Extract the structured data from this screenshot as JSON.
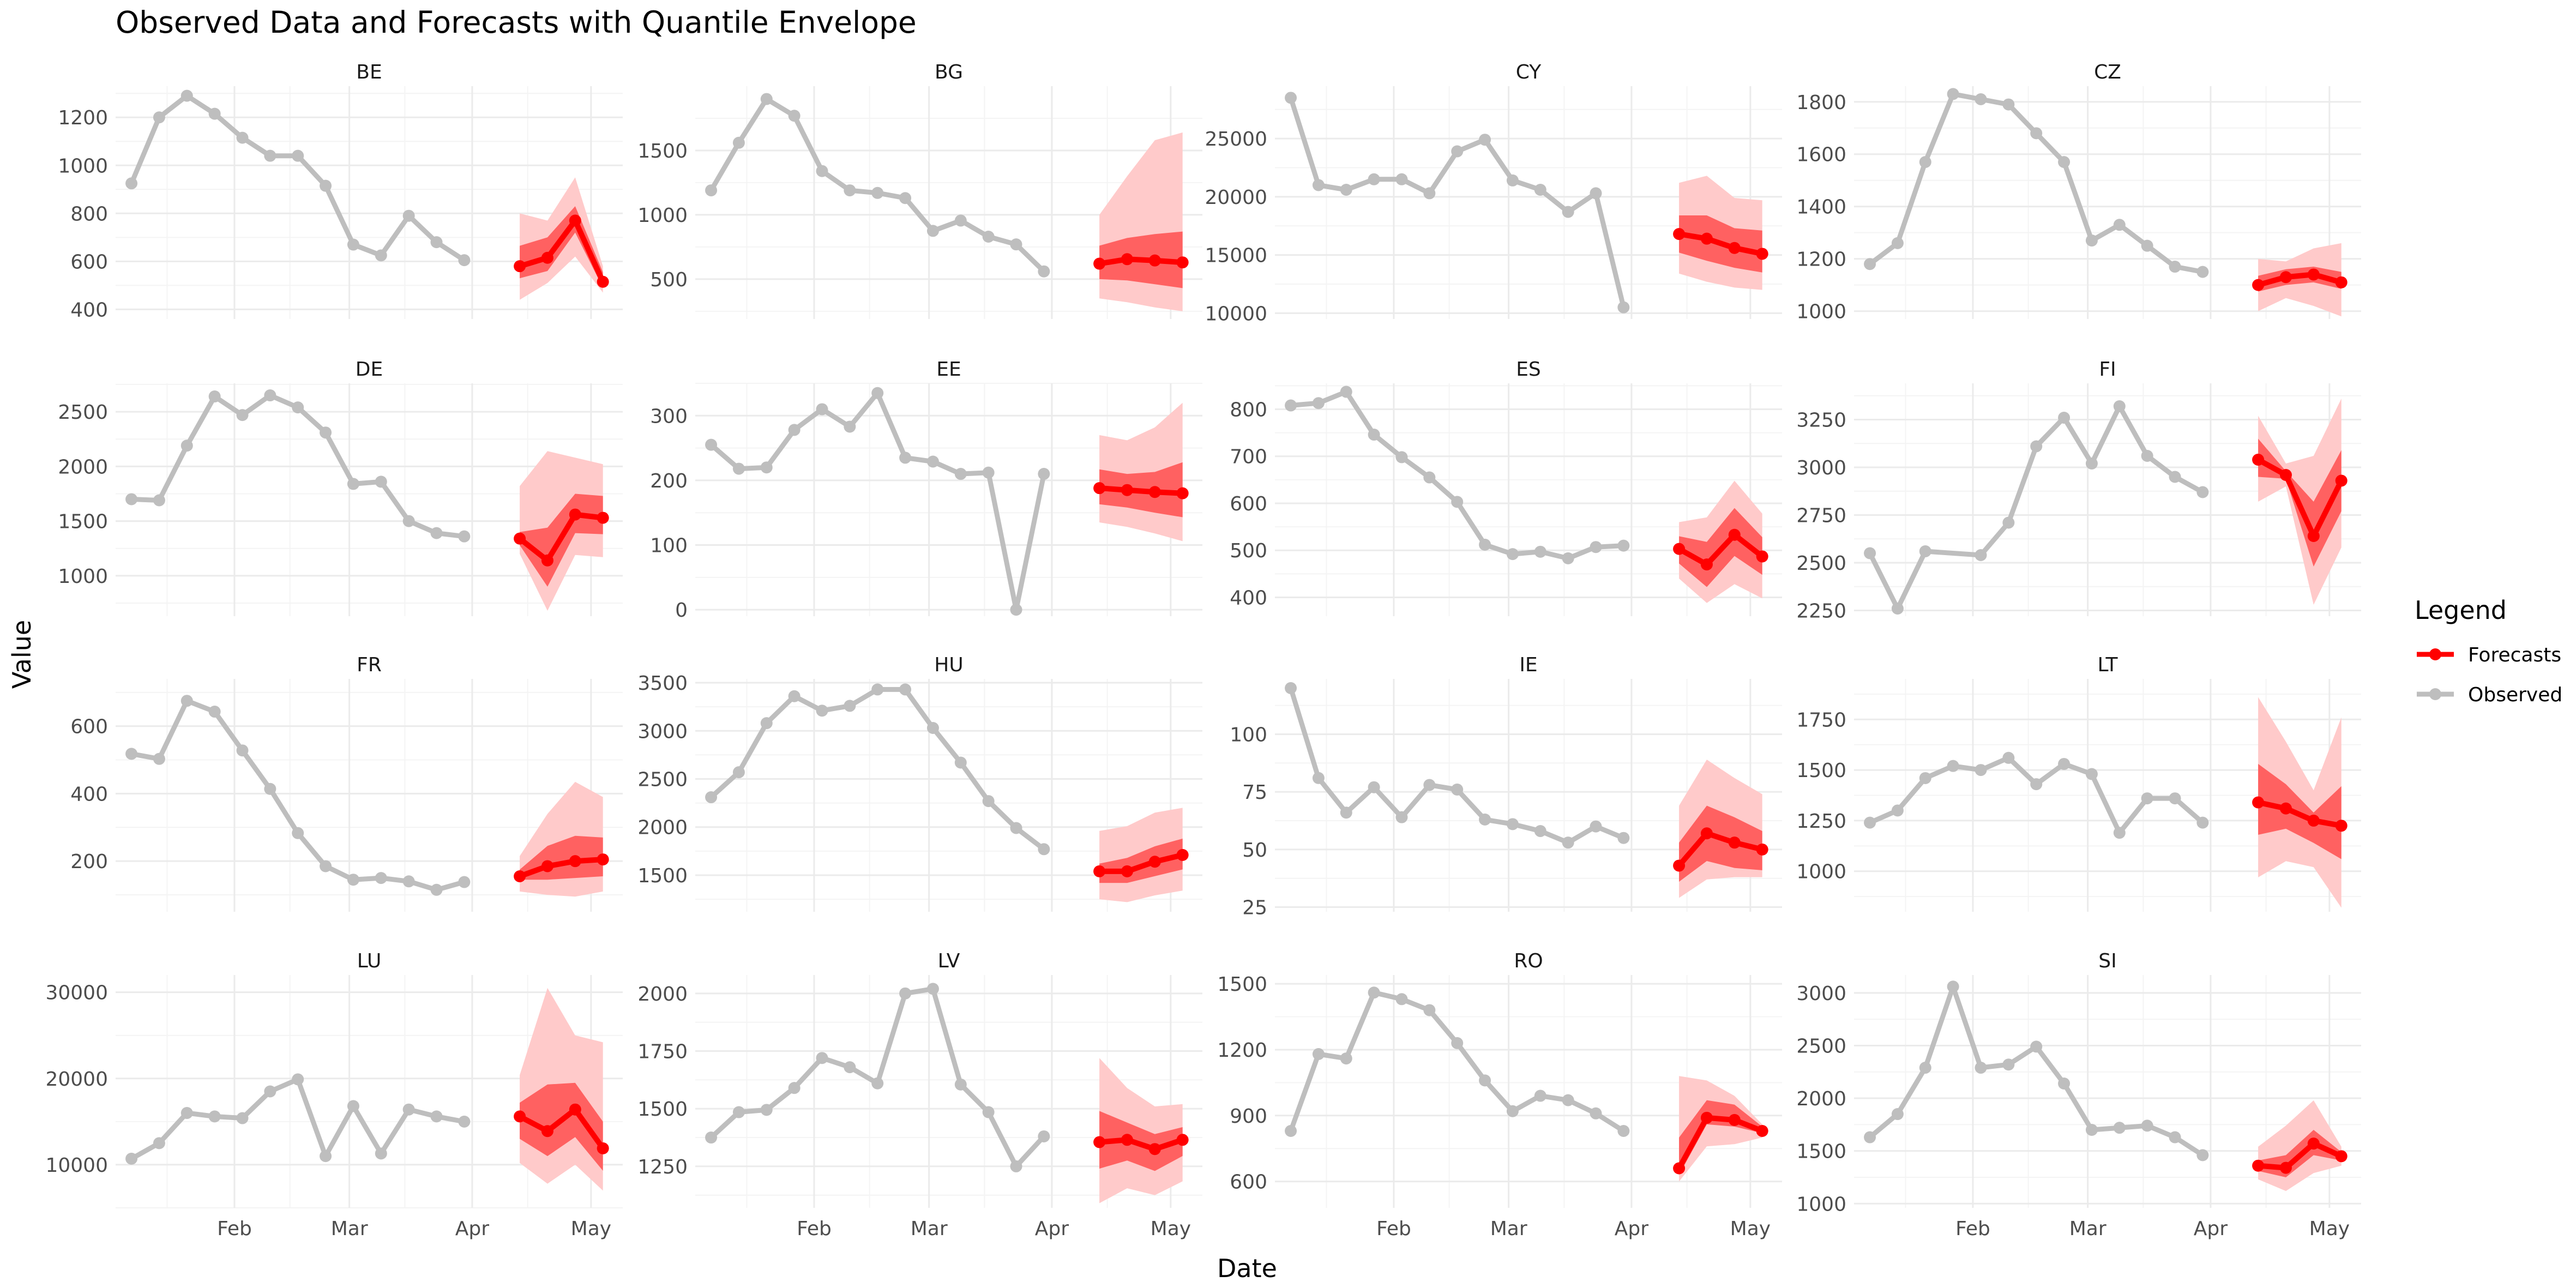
{
  "chart_data": {
    "type": "line",
    "title": "Observed Data and Forecasts with Quantile Envelope",
    "xlabel": "Date",
    "ylabel": "Value",
    "x_tick_labels": [
      "Feb",
      "Mar",
      "Apr",
      "May"
    ],
    "x_tick_dates": [
      "2024-02-01",
      "2024-03-01",
      "2024-04-01",
      "2024-05-01"
    ],
    "grid": true,
    "legend": {
      "title": "Legend",
      "position": "right",
      "entries": [
        {
          "name": "Forecasts",
          "color": "#ff0000"
        },
        {
          "name": "Observed",
          "color": "#bebebe"
        }
      ]
    },
    "colors": {
      "observed": "#bebebe",
      "forecast": "#ff0000",
      "inner_band": "#ff6161",
      "outer_band": "#ffcaca",
      "grid_major": "#ebebeb",
      "grid_minor": "#f4f4f4",
      "strip_text": "#1a1a1a",
      "axis_text": "#4d4d4d"
    },
    "observed_dates": [
      "2024-01-06",
      "2024-01-13",
      "2024-01-20",
      "2024-01-27",
      "2024-02-03",
      "2024-02-10",
      "2024-02-17",
      "2024-02-24",
      "2024-03-02",
      "2024-03-09",
      "2024-03-16",
      "2024-03-23",
      "2024-03-30",
      "2024-04-06"
    ],
    "forecast_dates": [
      "2024-04-13",
      "2024-04-20",
      "2024-04-27",
      "2024-05-04"
    ],
    "x_range": [
      "2024-01-02",
      "2024-05-09"
    ],
    "panels": [
      {
        "name": "BE",
        "ylim": [
          360,
          1330
        ],
        "yticks": [
          400,
          600,
          800,
          1000,
          1200
        ],
        "observed": [
          925,
          1200,
          1290,
          1215,
          1115,
          1040,
          1040,
          915,
          670,
          625,
          790,
          680,
          605,
          null
        ],
        "forecast": {
          "median": [
            580,
            615,
            770,
            515
          ],
          "inner_low": [
            530,
            560,
            720,
            490
          ],
          "inner_high": [
            665,
            700,
            830,
            555
          ],
          "outer_low": [
            440,
            510,
            620,
            470
          ],
          "outer_high": [
            800,
            770,
            950,
            580
          ]
        }
      },
      {
        "name": "BG",
        "ylim": [
          190,
          2000
        ],
        "yticks": [
          500,
          1000,
          1500
        ],
        "observed": [
          1190,
          1560,
          1900,
          1770,
          1340,
          1190,
          1170,
          1130,
          875,
          955,
          830,
          770,
          560,
          null
        ],
        "forecast": {
          "median": [
            620,
            655,
            645,
            630
          ],
          "inner_low": [
            500,
            490,
            460,
            430
          ],
          "inner_high": [
            760,
            820,
            850,
            870
          ],
          "outer_low": [
            350,
            320,
            280,
            250
          ],
          "outer_high": [
            1000,
            1300,
            1580,
            1640
          ]
        }
      },
      {
        "name": "CY",
        "ylim": [
          9500,
          29500
        ],
        "yticks": [
          10000,
          15000,
          20000,
          25000
        ],
        "observed": [
          28500,
          21000,
          20600,
          21500,
          21500,
          20300,
          23900,
          24900,
          21400,
          20600,
          18700,
          20300,
          10500,
          null
        ],
        "forecast": {
          "median": [
            16800,
            16400,
            15600,
            15100
          ],
          "inner_low": [
            15200,
            14500,
            13900,
            13500
          ],
          "inner_high": [
            18400,
            18400,
            17300,
            17100
          ],
          "outer_low": [
            13400,
            12700,
            12200,
            12000
          ],
          "outer_high": [
            21200,
            21800,
            19900,
            19700
          ]
        }
      },
      {
        "name": "CZ",
        "ylim": [
          970,
          1860
        ],
        "yticks": [
          1000,
          1200,
          1400,
          1600,
          1800
        ],
        "observed": [
          1180,
          1260,
          1570,
          1830,
          1810,
          1790,
          1680,
          1570,
          1270,
          1330,
          1250,
          1170,
          1150,
          null
        ],
        "forecast": {
          "median": [
            1100,
            1130,
            1140,
            1110
          ],
          "inner_low": [
            1075,
            1100,
            1110,
            1085
          ],
          "inner_high": [
            1135,
            1160,
            1170,
            1150
          ],
          "outer_low": [
            1000,
            1050,
            1020,
            980
          ],
          "outer_high": [
            1200,
            1190,
            1240,
            1260
          ]
        }
      },
      {
        "name": "DE",
        "ylim": [
          630,
          2760
        ],
        "yticks": [
          1000,
          1500,
          2000,
          2500
        ],
        "observed": [
          1700,
          1690,
          2190,
          2640,
          2470,
          2650,
          2540,
          2310,
          1840,
          1860,
          1500,
          1390,
          1360,
          null
        ],
        "forecast": {
          "median": [
            1340,
            1140,
            1560,
            1530
          ],
          "inner_low": [
            1280,
            900,
            1390,
            1380
          ],
          "inner_high": [
            1400,
            1440,
            1750,
            1730
          ],
          "outer_low": [
            1200,
            680,
            1190,
            1170
          ],
          "outer_high": [
            1820,
            2140,
            2080,
            2020
          ]
        }
      },
      {
        "name": "EE",
        "ylim": [
          -10,
          350
        ],
        "yticks": [
          0,
          100,
          200,
          300
        ],
        "observed": [
          255,
          218,
          220,
          278,
          310,
          283,
          335,
          235,
          229,
          210,
          212,
          0,
          210,
          null
        ],
        "forecast": {
          "median": [
            188,
            185,
            182,
            180
          ],
          "inner_low": [
            163,
            158,
            150,
            143
          ],
          "inner_high": [
            217,
            210,
            213,
            228
          ],
          "outer_low": [
            135,
            128,
            118,
            106
          ],
          "outer_high": [
            270,
            262,
            282,
            320
          ]
        }
      },
      {
        "name": "ES",
        "ylim": [
          360,
          855
        ],
        "yticks": [
          400,
          500,
          600,
          700,
          800
        ],
        "observed": [
          808,
          813,
          837,
          746,
          698,
          655,
          603,
          512,
          492,
          497,
          483,
          507,
          510,
          null
        ],
        "forecast": {
          "median": [
            503,
            470,
            533,
            487
          ],
          "inner_low": [
            472,
            422,
            488,
            448
          ],
          "inner_high": [
            530,
            518,
            590,
            528
          ],
          "outer_low": [
            440,
            388,
            428,
            398
          ],
          "outer_high": [
            560,
            570,
            648,
            578
          ]
        }
      },
      {
        "name": "FI",
        "ylim": [
          2220,
          3440
        ],
        "yticks": [
          2250,
          2500,
          2750,
          3000,
          3250
        ],
        "observed": [
          2550,
          2260,
          2560,
          null,
          2540,
          2710,
          3110,
          3260,
          3020,
          3320,
          3060,
          2950,
          2870,
          null
        ],
        "forecast": {
          "median": [
            3040,
            2960,
            2640,
            2930
          ],
          "inner_low": [
            2950,
            2940,
            2480,
            2770
          ],
          "inner_high": [
            3150,
            2980,
            2820,
            3090
          ],
          "outer_low": [
            2820,
            2900,
            2280,
            2580
          ],
          "outer_high": [
            3270,
            3020,
            3060,
            3360
          ]
        }
      },
      {
        "name": "FR",
        "ylim": [
          50,
          740
        ],
        "yticks": [
          200,
          400,
          600
        ],
        "observed": [
          518,
          503,
          675,
          643,
          528,
          414,
          283,
          185,
          145,
          150,
          140,
          115,
          138,
          null
        ],
        "forecast": {
          "median": [
            155,
            185,
            200,
            205
          ],
          "inner_low": [
            145,
            145,
            150,
            155
          ],
          "inner_high": [
            175,
            245,
            275,
            270
          ],
          "outer_low": [
            110,
            100,
            95,
            110
          ],
          "outer_high": [
            215,
            340,
            435,
            390
          ]
        }
      },
      {
        "name": "HU",
        "ylim": [
          1120,
          3540
        ],
        "yticks": [
          1500,
          2000,
          2500,
          3000,
          3500
        ],
        "observed": [
          2310,
          2570,
          3080,
          3360,
          3210,
          3260,
          3430,
          3430,
          3030,
          2670,
          2270,
          1990,
          1770,
          null
        ],
        "forecast": {
          "median": [
            1540,
            1540,
            1640,
            1710
          ],
          "inner_low": [
            1420,
            1420,
            1490,
            1560
          ],
          "inner_high": [
            1620,
            1680,
            1800,
            1880
          ],
          "outer_low": [
            1250,
            1220,
            1290,
            1340
          ],
          "outer_high": [
            1960,
            2010,
            2150,
            2200
          ]
        }
      },
      {
        "name": "IE",
        "ylim": [
          23,
          124
        ],
        "yticks": [
          25,
          50,
          75,
          100
        ],
        "observed": [
          120,
          81,
          66,
          77,
          64,
          78,
          76,
          63,
          61,
          58,
          53,
          60,
          55,
          null
        ],
        "forecast": {
          "median": [
            43,
            57,
            53,
            50
          ],
          "inner_low": [
            36,
            45,
            42,
            41
          ],
          "inner_high": [
            53,
            69,
            64,
            58
          ],
          "outer_low": [
            29,
            37,
            38,
            38
          ],
          "outer_high": [
            69,
            89,
            81,
            74
          ]
        }
      },
      {
        "name": "LT",
        "ylim": [
          800,
          1950
        ],
        "yticks": [
          1000,
          1250,
          1500,
          1750
        ],
        "observed": [
          1240,
          1300,
          1460,
          1520,
          1500,
          1560,
          1430,
          1530,
          1480,
          1190,
          1360,
          1360,
          1240,
          null
        ],
        "forecast": {
          "median": [
            1340,
            1310,
            1250,
            1225
          ],
          "inner_low": [
            1180,
            1210,
            1140,
            1060
          ],
          "inner_high": [
            1530,
            1430,
            1290,
            1420
          ],
          "outer_low": [
            970,
            1050,
            1020,
            820
          ],
          "outer_high": [
            1860,
            1640,
            1400,
            1760
          ]
        }
      },
      {
        "name": "LU",
        "ylim": [
          5000,
          32000
        ],
        "yticks": [
          10000,
          20000,
          30000
        ],
        "observed": [
          10700,
          12500,
          16000,
          15600,
          15400,
          18500,
          19900,
          11000,
          16800,
          11300,
          16400,
          15600,
          15000,
          null
        ],
        "forecast": {
          "median": [
            15600,
            13900,
            16400,
            11900
          ],
          "inner_low": [
            13000,
            11000,
            13200,
            9300
          ],
          "inner_high": [
            17200,
            19300,
            19500,
            15000
          ],
          "outer_low": [
            10200,
            7800,
            10000,
            7000
          ],
          "outer_high": [
            20400,
            30500,
            25000,
            24200
          ]
        }
      },
      {
        "name": "LV",
        "ylim": [
          1070,
          2080
        ],
        "yticks": [
          1250,
          1500,
          1750,
          2000
        ],
        "observed": [
          1375,
          1485,
          1495,
          1590,
          1720,
          1680,
          1610,
          2000,
          2020,
          1605,
          1485,
          1250,
          1380,
          null
        ],
        "forecast": {
          "median": [
            1355,
            1365,
            1325,
            1365
          ],
          "inner_low": [
            1240,
            1275,
            1230,
            1295
          ],
          "inner_high": [
            1490,
            1440,
            1390,
            1420
          ],
          "outer_low": [
            1090,
            1155,
            1125,
            1185
          ],
          "outer_high": [
            1720,
            1590,
            1510,
            1520
          ]
        }
      },
      {
        "name": "RO",
        "ylim": [
          480,
          1540
        ],
        "yticks": [
          600,
          900,
          1200,
          1500
        ],
        "observed": [
          830,
          1180,
          1160,
          1460,
          1430,
          1380,
          1230,
          1060,
          920,
          990,
          970,
          910,
          830,
          null
        ],
        "forecast": {
          "median": [
            660,
            890,
            880,
            830
          ],
          "inner_low": [
            630,
            860,
            850,
            820
          ],
          "inner_high": [
            800,
            970,
            950,
            850
          ],
          "outer_low": [
            600,
            760,
            770,
            800
          ],
          "outer_high": [
            1080,
            1060,
            990,
            860
          ]
        }
      },
      {
        "name": "SI",
        "ylim": [
          960,
          3170
        ],
        "yticks": [
          1000,
          1500,
          2000,
          2500,
          3000
        ],
        "observed": [
          1630,
          1850,
          2290,
          3060,
          2290,
          2320,
          2490,
          2140,
          1700,
          1720,
          1740,
          1630,
          1460,
          null
        ],
        "forecast": {
          "median": [
            1360,
            1340,
            1570,
            1450
          ],
          "inner_low": [
            1310,
            1250,
            1460,
            1410
          ],
          "inner_high": [
            1410,
            1460,
            1700,
            1490
          ],
          "outer_low": [
            1230,
            1120,
            1290,
            1360
          ],
          "outer_high": [
            1540,
            1740,
            1980,
            1540
          ]
        }
      }
    ]
  }
}
